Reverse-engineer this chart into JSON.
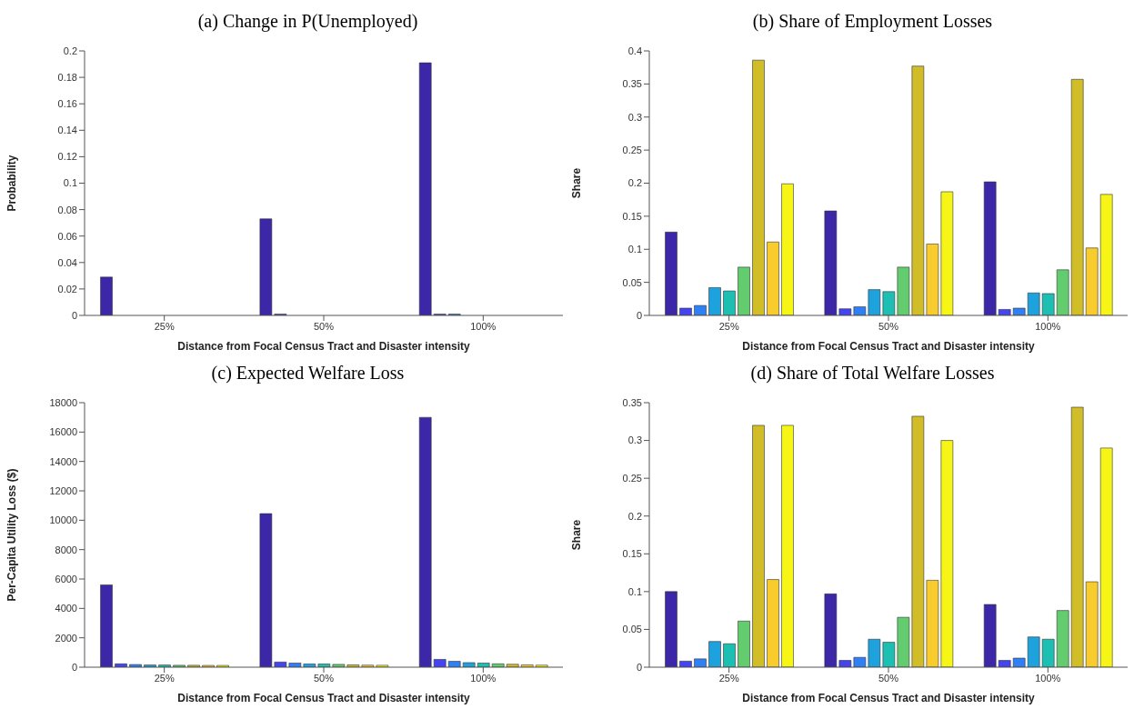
{
  "chart_data": [
    {
      "type": "bar",
      "title": "(a) Change in P(Unemployed)",
      "xlabel": "Distance from Focal Census Tract and Disaster intensity",
      "ylabel": "Probability",
      "categories": [
        "25%",
        "50%",
        "100%"
      ],
      "ylim": [
        0,
        0.2
      ],
      "yticks": [
        0,
        0.02,
        0.04,
        0.06,
        0.08,
        0.1,
        0.12,
        0.14,
        0.16,
        0.18,
        0.2
      ],
      "grid": false,
      "legend": false,
      "series": [
        {
          "color": "#3b27a8",
          "values": [
            0.029,
            0.073,
            0.191
          ]
        },
        {
          "color": "#4444f0",
          "values": [
            0,
            0.001,
            0.001
          ]
        },
        {
          "color": "#2f80f5",
          "values": [
            0,
            0,
            0.001
          ]
        },
        {
          "color": "#1ea2dd",
          "values": [
            0,
            0,
            0
          ]
        },
        {
          "color": "#1ebfb3",
          "values": [
            0,
            0,
            0
          ]
        },
        {
          "color": "#62cc6e",
          "values": [
            0,
            0,
            0
          ]
        },
        {
          "color": "#d0bd27",
          "values": [
            0,
            0,
            0
          ]
        },
        {
          "color": "#f9cc2d",
          "values": [
            0,
            0,
            0
          ]
        },
        {
          "color": "#f7f516",
          "values": [
            0,
            0,
            0
          ]
        }
      ]
    },
    {
      "type": "bar",
      "title": "(b) Share of Employment Losses",
      "xlabel": "Distance from Focal Census Tract and Disaster intensity",
      "ylabel": "Share",
      "categories": [
        "25%",
        "50%",
        "100%"
      ],
      "ylim": [
        0,
        0.4
      ],
      "yticks": [
        0,
        0.05,
        0.1,
        0.15,
        0.2,
        0.25,
        0.3,
        0.35,
        0.4
      ],
      "grid": false,
      "legend": false,
      "series": [
        {
          "color": "#3b27a8",
          "values": [
            0.126,
            0.158,
            0.202
          ]
        },
        {
          "color": "#4444f0",
          "values": [
            0.011,
            0.01,
            0.009
          ]
        },
        {
          "color": "#2f80f5",
          "values": [
            0.015,
            0.013,
            0.011
          ]
        },
        {
          "color": "#1ea2dd",
          "values": [
            0.042,
            0.039,
            0.034
          ]
        },
        {
          "color": "#1ebfb3",
          "values": [
            0.037,
            0.036,
            0.033
          ]
        },
        {
          "color": "#62cc6e",
          "values": [
            0.073,
            0.073,
            0.069
          ]
        },
        {
          "color": "#d0bd27",
          "values": [
            0.386,
            0.377,
            0.357
          ]
        },
        {
          "color": "#f9cc2d",
          "values": [
            0.111,
            0.108,
            0.102
          ]
        },
        {
          "color": "#f7f516",
          "values": [
            0.199,
            0.187,
            0.183
          ]
        }
      ]
    },
    {
      "type": "bar",
      "title": "(c) Expected Welfare Loss",
      "xlabel": "Distance from Focal Census Tract and Disaster intensity",
      "ylabel": "Per-Capita Utility Loss ($)",
      "categories": [
        "25%",
        "50%",
        "100%"
      ],
      "ylim": [
        0,
        18000
      ],
      "yticks": [
        0,
        2000,
        4000,
        6000,
        8000,
        10000,
        12000,
        14000,
        16000,
        18000
      ],
      "grid": false,
      "legend": false,
      "series": [
        {
          "color": "#3b27a8",
          "values": [
            5600,
            10450,
            17000
          ]
        },
        {
          "color": "#4444f0",
          "values": [
            230,
            350,
            530
          ]
        },
        {
          "color": "#2f80f5",
          "values": [
            180,
            280,
            400
          ]
        },
        {
          "color": "#1ea2dd",
          "values": [
            150,
            220,
            310
          ]
        },
        {
          "color": "#1ebfb3",
          "values": [
            150,
            220,
            280
          ]
        },
        {
          "color": "#62cc6e",
          "values": [
            130,
            190,
            230
          ]
        },
        {
          "color": "#d0bd27",
          "values": [
            130,
            160,
            200
          ]
        },
        {
          "color": "#f9cc2d",
          "values": [
            120,
            140,
            160
          ]
        },
        {
          "color": "#f7f516",
          "values": [
            120,
            130,
            140
          ]
        }
      ]
    },
    {
      "type": "bar",
      "title": "(d) Share of Total Welfare Losses",
      "xlabel": "Distance from Focal Census Tract and Disaster intensity",
      "ylabel": "Share",
      "categories": [
        "25%",
        "50%",
        "100%"
      ],
      "ylim": [
        0,
        0.35
      ],
      "yticks": [
        0,
        0.05,
        0.1,
        0.15,
        0.2,
        0.25,
        0.3,
        0.35
      ],
      "grid": false,
      "legend": false,
      "series": [
        {
          "color": "#3b27a8",
          "values": [
            0.1,
            0.097,
            0.083
          ]
        },
        {
          "color": "#4444f0",
          "values": [
            0.008,
            0.009,
            0.009
          ]
        },
        {
          "color": "#2f80f5",
          "values": [
            0.011,
            0.013,
            0.012
          ]
        },
        {
          "color": "#1ea2dd",
          "values": [
            0.034,
            0.037,
            0.04
          ]
        },
        {
          "color": "#1ebfb3",
          "values": [
            0.031,
            0.033,
            0.037
          ]
        },
        {
          "color": "#62cc6e",
          "values": [
            0.061,
            0.066,
            0.075
          ]
        },
        {
          "color": "#d0bd27",
          "values": [
            0.32,
            0.332,
            0.344
          ]
        },
        {
          "color": "#f9cc2d",
          "values": [
            0.116,
            0.115,
            0.113
          ]
        },
        {
          "color": "#f7f516",
          "values": [
            0.32,
            0.3,
            0.29
          ]
        }
      ]
    }
  ]
}
